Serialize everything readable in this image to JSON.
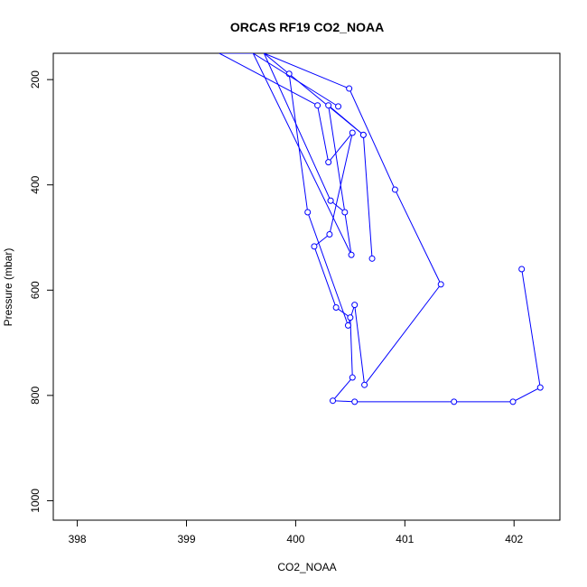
{
  "chart_data": {
    "type": "line",
    "title": "ORCAS RF19 CO2_NOAA",
    "xlabel": "CO2_NOAA",
    "ylabel": "Pressure (mbar)",
    "xlim": [
      397.78,
      402.42
    ],
    "ylim": [
      1037,
      150
    ],
    "y_inverted": true,
    "grid": false,
    "xticks": [
      398,
      399,
      400,
      401,
      402
    ],
    "yticks": [
      200,
      400,
      600,
      800,
      1000
    ],
    "series": [
      {
        "color": "#0000ff",
        "marker": "open-circle",
        "x": [
          402.07,
          402.24,
          401.99,
          401.45,
          400.54,
          400.34,
          400.52,
          400.5,
          400.37,
          400.17,
          400.31,
          400.52,
          400.3,
          400.2,
          399.3,
          399.61,
          400.51,
          400.3,
          400.62,
          400.7,
          400.62,
          399.71,
          400.49,
          400.91,
          401.33,
          400.63,
          400.54,
          400.48,
          400.11,
          399.94
        ],
        "y": [
          560,
          785,
          812,
          812,
          812,
          810,
          766,
          652,
          633,
          517,
          494,
          301,
          357,
          249,
          150,
          150,
          533,
          249,
          305,
          540,
          305,
          150,
          217,
          409,
          589,
          780,
          628,
          667,
          452,
          189
        ]
      }
    ],
    "extra_segments": [
      {
        "x": [
          399.61,
          400.39
        ],
        "y": [
          150,
          251
        ]
      },
      {
        "x": [
          399.71,
          400.32
        ],
        "y": [
          150,
          430
        ]
      },
      {
        "x": [
          400.32,
          400.45
        ],
        "y": [
          430,
          452
        ]
      }
    ]
  }
}
